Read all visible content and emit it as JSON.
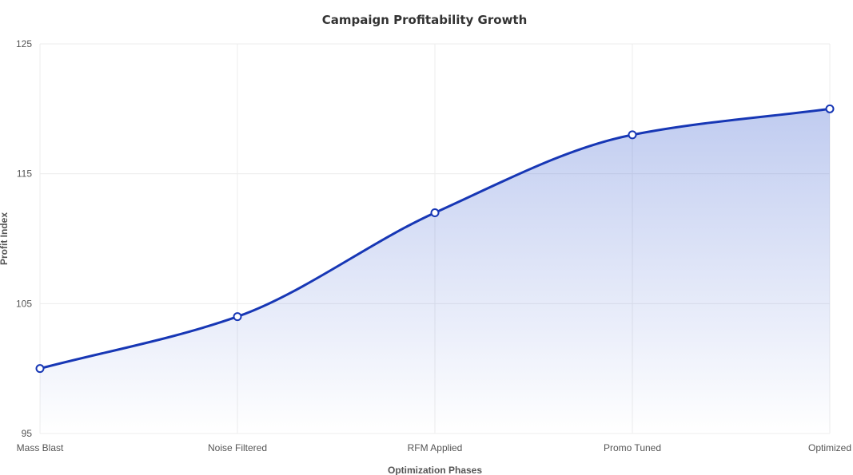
{
  "chart_data": {
    "type": "area",
    "title": "Campaign Profitability Growth",
    "xlabel": "Optimization Phases",
    "ylabel": "Profit Index",
    "categories": [
      "Mass Blast",
      "Noise Filtered",
      "RFM Applied",
      "Promo Tuned",
      "Optimized"
    ],
    "series": [
      {
        "values": [
          100,
          104,
          112,
          118,
          120
        ]
      }
    ],
    "ylim": [
      95,
      125
    ],
    "yticks": [
      95,
      105,
      115,
      125
    ],
    "grid": true,
    "colors": {
      "line": "#1737b5",
      "fill": "#3b5fd0",
      "point_fill": "#ffffff"
    }
  }
}
